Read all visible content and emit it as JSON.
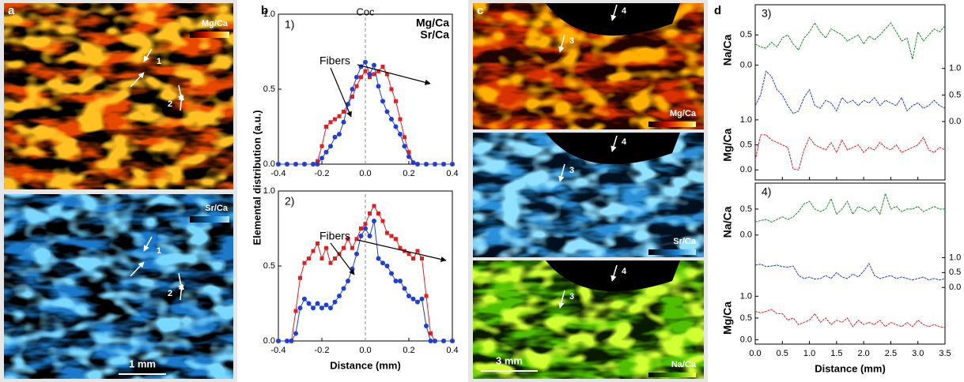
{
  "panel_labels": [
    "a",
    "b",
    "c",
    "d"
  ],
  "images_a": {
    "maps": [
      "Mg/Ca",
      "Sr/Ca"
    ],
    "markers": [
      "1",
      "2"
    ],
    "scale_bar": "1 mm"
  },
  "images_c": {
    "maps": [
      "Mg/Ca",
      "Sr/Ca",
      "Na/Ca"
    ],
    "markers": [
      "3",
      "4"
    ],
    "scale_bar": "3 mm"
  },
  "chart_data": [
    {
      "type": "line",
      "panel_label": "1)",
      "legend": true,
      "annotation": "Fibers",
      "reference_x": 0,
      "reference_label": "Coc",
      "ylabel": "Elemental distribution (a.u.)",
      "x": [
        -0.4,
        -0.36,
        -0.32,
        -0.28,
        -0.24,
        -0.22,
        -0.2,
        -0.18,
        -0.16,
        -0.14,
        -0.12,
        -0.1,
        -0.08,
        -0.06,
        -0.04,
        -0.02,
        0,
        0.02,
        0.04,
        0.06,
        0.08,
        0.1,
        0.12,
        0.14,
        0.16,
        0.18,
        0.2,
        0.22,
        0.24,
        0.28,
        0.32,
        0.36,
        0.4
      ],
      "series": [
        {
          "name": "Mg/Ca",
          "color": "#e02020",
          "marker": "square",
          "values": [
            0,
            0,
            0,
            0,
            0,
            0.02,
            0.12,
            0.25,
            0.28,
            0.3,
            0.32,
            0.35,
            0.4,
            0.45,
            0.52,
            0.58,
            0.62,
            0.58,
            0.6,
            0.62,
            0.65,
            0.6,
            0.5,
            0.42,
            0.3,
            0.18,
            0.08,
            0.01,
            0,
            0,
            0,
            0,
            0
          ]
        },
        {
          "name": "Sr/Ca",
          "color": "#1f3fd6",
          "marker": "circle",
          "values": [
            0,
            0,
            0,
            0,
            0,
            0,
            0.04,
            0.08,
            0.12,
            0.18,
            0.2,
            0.28,
            0.4,
            0.5,
            0.58,
            0.65,
            0.68,
            0.6,
            0.66,
            0.52,
            0.42,
            0.35,
            0.3,
            0.25,
            0.2,
            0.12,
            0.05,
            0.01,
            0,
            0,
            0,
            0,
            0
          ]
        }
      ],
      "xlim": [
        -0.4,
        0.4
      ],
      "xticks": [
        -0.4,
        -0.2,
        {
          "value": 0,
          "label": "0.0"
        },
        0.2,
        0.4
      ],
      "ylim": [
        0,
        1
      ],
      "yticks": [
        {
          "value": 0,
          "label": "0.0"
        },
        0.5,
        {
          "value": 1,
          "label": "1.0"
        }
      ]
    },
    {
      "type": "line",
      "panel_label": "2)",
      "legend": false,
      "annotation": "Fibers",
      "reference_x": 0,
      "xlabel": "Distance (mm)",
      "x": [
        -0.4,
        -0.36,
        -0.34,
        -0.32,
        -0.3,
        -0.28,
        -0.26,
        -0.24,
        -0.22,
        -0.2,
        -0.18,
        -0.16,
        -0.14,
        -0.12,
        -0.1,
        -0.08,
        -0.06,
        -0.04,
        -0.02,
        0,
        0.02,
        0.04,
        0.06,
        0.08,
        0.1,
        0.12,
        0.14,
        0.16,
        0.18,
        0.2,
        0.22,
        0.24,
        0.26,
        0.28,
        0.3,
        0.32,
        0.36,
        0.4
      ],
      "series": [
        {
          "name": "Mg/Ca",
          "color": "#e02020",
          "marker": "square",
          "values": [
            0,
            0,
            0,
            0.2,
            0.42,
            0.52,
            0.55,
            0.6,
            0.65,
            0.55,
            0.62,
            0.52,
            0.55,
            0.58,
            0.62,
            0.68,
            0.62,
            0.68,
            0.75,
            0.78,
            0.85,
            0.9,
            0.85,
            0.8,
            0.72,
            0.7,
            0.68,
            0.62,
            0.6,
            0.58,
            0.55,
            0.6,
            0.55,
            0.3,
            0.05,
            0,
            0,
            0
          ]
        },
        {
          "name": "Sr/Ca",
          "color": "#1f3fd6",
          "marker": "circle",
          "values": [
            0,
            0,
            0,
            0.05,
            0.22,
            0.28,
            0.25,
            0.22,
            0.25,
            0.22,
            0.24,
            0.22,
            0.26,
            0.3,
            0.35,
            0.4,
            0.48,
            0.58,
            0.7,
            0.75,
            0.7,
            0.8,
            0.55,
            0.52,
            0.5,
            0.45,
            0.4,
            0.4,
            0.35,
            0.3,
            0.28,
            0.26,
            0.28,
            0.1,
            0,
            0,
            0,
            0
          ]
        }
      ],
      "xlim": [
        -0.4,
        0.4
      ],
      "xticks": [
        -0.4,
        -0.2,
        {
          "value": 0,
          "label": "0.0"
        },
        0.2,
        0.4
      ],
      "ylim": [
        0,
        1
      ],
      "yticks": [
        {
          "value": 0,
          "label": "0.0"
        },
        0.5,
        {
          "value": 1,
          "label": "1.0"
        }
      ]
    },
    {
      "type": "multi_axis_line",
      "panel_label": "3)",
      "x": [
        0,
        0.1,
        0.2,
        0.3,
        0.4,
        0.5,
        0.6,
        0.7,
        0.8,
        0.9,
        1,
        1.1,
        1.2,
        1.3,
        1.4,
        1.5,
        1.6,
        1.7,
        1.8,
        1.9,
        2,
        2.1,
        2.2,
        2.3,
        2.4,
        2.5,
        2.6,
        2.7,
        2.8,
        2.9,
        3,
        3.1,
        3.2,
        3.3,
        3.4,
        3.5
      ],
      "xlim": [
        0,
        3.5
      ],
      "xticks": [
        0,
        0.5,
        1,
        1.5,
        2,
        2.5,
        3,
        3.5
      ],
      "series": [
        {
          "name": "Na/Ca",
          "color": "#1e8c2a",
          "axis": "left",
          "ylim": [
            -1.9,
            1.0
          ],
          "yticks": [
            {
              "value": 0,
              "label": "0.0"
            },
            0.5
          ],
          "values": [
            0.35,
            0.3,
            0.28,
            0.38,
            0.3,
            0.45,
            0.5,
            0.35,
            0.25,
            0.45,
            0.55,
            0.7,
            0.55,
            0.45,
            0.6,
            0.55,
            0.5,
            0.4,
            0.45,
            0.5,
            0.35,
            0.48,
            0.42,
            0.5,
            0.6,
            0.7,
            0.55,
            0.4,
            0.45,
            0.1,
            0.55,
            0.4,
            0.5,
            0.6,
            0.55,
            0.65
          ]
        },
        {
          "name": "Sr/Ca",
          "color": "#1f3fd6",
          "axis": "right",
          "ylim": [
            -1.1,
            2.2
          ],
          "yticks": [
            {
              "value": 0,
              "label": "0.0"
            },
            0.5,
            {
              "value": 1,
              "label": "1.0"
            }
          ],
          "values": [
            0.3,
            0.5,
            0.95,
            0.85,
            0.6,
            0.5,
            0.3,
            0.15,
            0.2,
            0.45,
            0.6,
            0.3,
            0.25,
            0.4,
            0.35,
            0.2,
            0.45,
            0.35,
            0.4,
            0.3,
            0.4,
            0.35,
            0.45,
            0.3,
            0.4,
            0.35,
            0.3,
            0.45,
            0.2,
            0.3,
            0.35,
            0.25,
            0.3,
            0.4,
            0.3,
            0.25
          ]
        },
        {
          "name": "Mg/Ca",
          "color": "#e02020",
          "axis": "left",
          "ylim": [
            -0.2,
            3.3
          ],
          "yticks": [
            {
              "value": 0,
              "label": "0.0"
            },
            0.5,
            {
              "value": 1,
              "label": "1.0"
            }
          ],
          "values": [
            0.2,
            0.7,
            0.7,
            0.6,
            0.55,
            0.5,
            0.45,
            0.02,
            0,
            0.4,
            0.65,
            0.5,
            0.45,
            0.4,
            0.55,
            0.35,
            0.6,
            0.4,
            0.45,
            0.5,
            0.35,
            0.45,
            0.4,
            0.55,
            0.45,
            0.4,
            0.5,
            0.35,
            0.4,
            0.45,
            0.5,
            0.65,
            0.4,
            0.35,
            0.45,
            0.4
          ]
        }
      ]
    },
    {
      "type": "multi_axis_line",
      "panel_label": "4)",
      "xlabel": "Distance (mm)",
      "x": [
        0,
        0.1,
        0.2,
        0.3,
        0.4,
        0.5,
        0.6,
        0.7,
        0.8,
        0.9,
        1,
        1.1,
        1.2,
        1.3,
        1.4,
        1.5,
        1.6,
        1.7,
        1.8,
        1.9,
        2,
        2.1,
        2.2,
        2.3,
        2.4,
        2.5,
        2.6,
        2.7,
        2.8,
        2.9,
        3,
        3.1,
        3.2,
        3.3,
        3.4,
        3.5
      ],
      "xlim": [
        0,
        3.5
      ],
      "xticks": [
        {
          "value": 0,
          "label": "0.0"
        },
        0.5,
        {
          "value": 1,
          "label": "1.0"
        },
        1.5,
        {
          "value": 2,
          "label": "2.0"
        },
        2.5,
        {
          "value": 3,
          "label": "3.0"
        },
        3.5
      ],
      "series": [
        {
          "name": "Na/Ca",
          "color": "#1e8c2a",
          "axis": "left",
          "ylim": [
            -2.1,
            1.0
          ],
          "yticks": [
            {
              "value": 0,
              "label": "0.0"
            },
            0.5
          ],
          "values": [
            0.25,
            0.28,
            0.3,
            0.25,
            0.3,
            0.35,
            0.3,
            0.35,
            0.45,
            0.6,
            0.65,
            0.5,
            0.45,
            0.5,
            0.7,
            0.4,
            0.5,
            0.65,
            0.4,
            0.55,
            0.5,
            0.45,
            0.55,
            0.4,
            0.8,
            0.5,
            0.55,
            0.45,
            0.5,
            0.5,
            0.55,
            0.45,
            0.5,
            0.55,
            0.5,
            0.5
          ]
        },
        {
          "name": "Sr/Ca",
          "color": "#1f3fd6",
          "axis": "right",
          "ylim": [
            -1.9,
            3.5
          ],
          "yticks": [
            {
              "value": 0,
              "label": "0.0"
            },
            0.5,
            {
              "value": 1,
              "label": "1.0"
            }
          ],
          "values": [
            0.75,
            0.78,
            0.7,
            0.72,
            0.75,
            0.7,
            0.68,
            0.72,
            0.4,
            0.3,
            0.35,
            0.28,
            0.3,
            0.4,
            0.3,
            0.5,
            0.35,
            0.3,
            0.45,
            0.35,
            0.55,
            0.8,
            0.4,
            0.3,
            0.35,
            0.4,
            0.3,
            0.35,
            0.3,
            0.25,
            0.3,
            0.35,
            0.25,
            0.3,
            0.25,
            0.3
          ]
        },
        {
          "name": "Mg/Ca",
          "color": "#e02020",
          "axis": "left",
          "ylim": [
            -0.1,
            3.6
          ],
          "yticks": [
            {
              "value": 0,
              "label": "0.0"
            },
            0.5,
            {
              "value": 1,
              "label": "1.0"
            }
          ],
          "values": [
            0.65,
            0.62,
            0.65,
            0.7,
            0.6,
            0.6,
            0.45,
            0.5,
            0.35,
            0.4,
            0.45,
            0.6,
            0.4,
            0.5,
            0.35,
            0.45,
            0.4,
            0.5,
            0.3,
            0.45,
            0.35,
            0.4,
            0.35,
            0.45,
            0.3,
            0.4,
            0.35,
            0.3,
            0.4,
            0.3,
            0.45,
            0.35,
            0.3,
            0.35,
            0.3,
            0.28
          ]
        }
      ]
    }
  ]
}
